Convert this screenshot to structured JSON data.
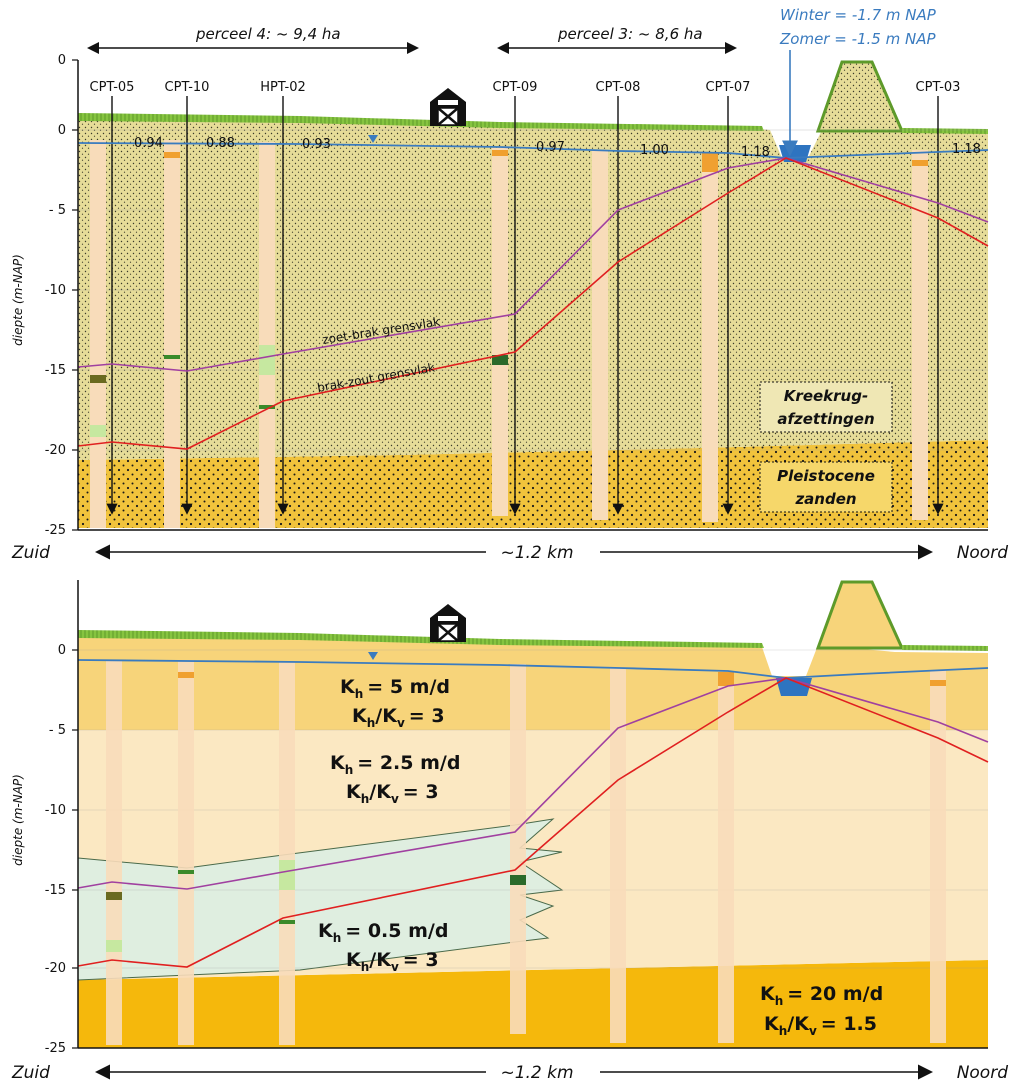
{
  "figure": {
    "top": {
      "parcels": [
        {
          "label": "perceel 4: ~ 9,4 ha"
        },
        {
          "label": "perceel 3: ~ 8,6 ha"
        }
      ],
      "water_levels": {
        "winter": "Winter = -1.7 m NAP",
        "zomer": "Zomer = -1.5 m NAP"
      },
      "y_axis": {
        "label": "diepte (m-NAP)",
        "ticks": [
          "0",
          "0",
          "- 5",
          "-10",
          "-15",
          "-20",
          "-25"
        ]
      },
      "cpts": [
        {
          "name": "CPT-05"
        },
        {
          "name": "CPT-10"
        },
        {
          "name": "HPT-02"
        },
        {
          "name": "CPT-09"
        },
        {
          "name": "CPT-08"
        },
        {
          "name": "CPT-07"
        },
        {
          "name": "CPT-03"
        }
      ],
      "groundwater_values": [
        "0.94",
        "0.88",
        "0.93",
        "0.97",
        "1.00",
        "1.18",
        "1.18"
      ],
      "boundaries": {
        "fresh_brackish": "zoet-brak grensvlak",
        "brackish_salt": "brak-zout grensvlak"
      },
      "units": {
        "kreekrug": [
          "Kreekrug-",
          "afzettingen"
        ],
        "pleistocene": [
          "Pleistocene",
          "zanden"
        ]
      },
      "direction": {
        "south": "Zuid",
        "distance": "~1.2 km",
        "north": "Noord"
      }
    },
    "bottom": {
      "y_axis": {
        "label": "diepte (m-NAP)",
        "ticks": [
          "0",
          "- 5",
          "-10",
          "-15",
          "-20",
          "-25"
        ]
      },
      "layers": [
        {
          "kh": "= 5 m/d",
          "ratio": "= 3"
        },
        {
          "kh": "= 2.5 m/d",
          "ratio": "= 3"
        },
        {
          "kh": "= 0.5 m/d",
          "ratio": "= 3"
        },
        {
          "kh": "= 20 m/d",
          "ratio": "= 1.5"
        }
      ],
      "symbol": {
        "k": "K",
        "h": "h",
        "v": "v"
      },
      "direction": {
        "south": "Zuid",
        "distance": "~1.2 km",
        "north": "Noord"
      }
    },
    "colors": {
      "water_line": "#3a7bbf",
      "fresh_brackish_line": "#a040a0",
      "brackish_salt_line": "#e02020",
      "grass": "#86c440",
      "kreekrug_fill": "#e8df9c",
      "pleistocene_fill": "#f1c33c",
      "layer1": "#f7d47a",
      "layer2": "#fbe8c2",
      "layer3": "#dfeee0",
      "layer4": "#f5b80c"
    },
    "icons": {
      "farm": "barn-icon",
      "water_marker": "triangle-marker-icon"
    }
  }
}
